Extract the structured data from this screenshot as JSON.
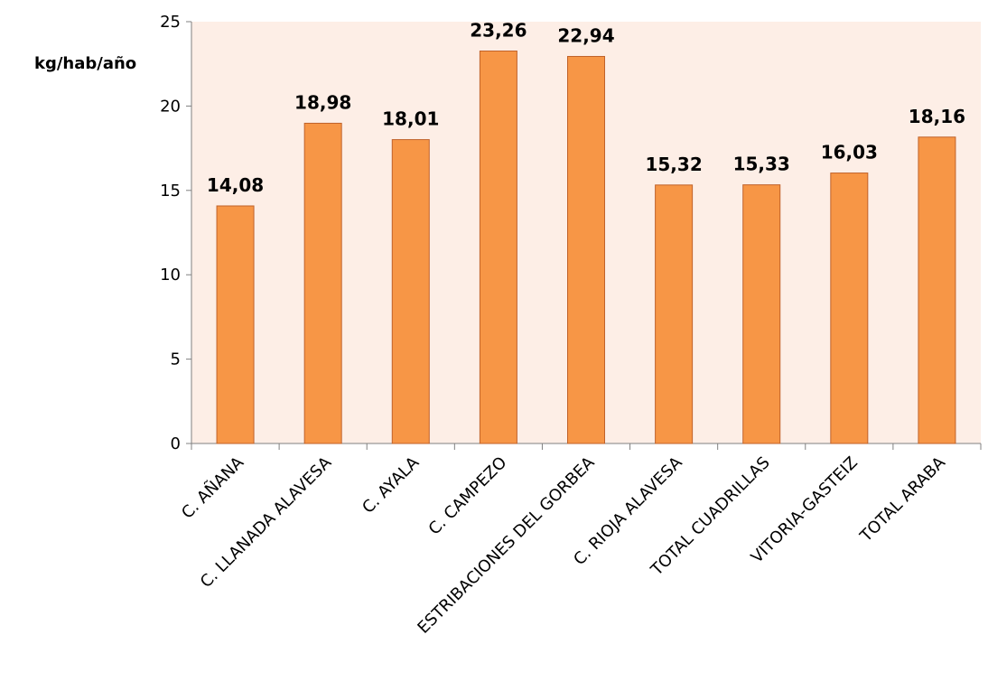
{
  "chart_data": {
    "type": "bar",
    "title": "",
    "xlabel": "",
    "ylabel": "kg/hab/año",
    "ylim": [
      0,
      25
    ],
    "yticks": [
      0,
      5,
      10,
      15,
      20,
      25
    ],
    "categories": [
      "C. AÑANA",
      "C. LLANADA ALAVESA",
      "C. AYALA",
      "C. CAMPEZO",
      "ESTRIBACIONES DEL GORBEA",
      "C. RIOJA ALAVESA",
      "TOTAL CUADRILLAS",
      "VITORIA-GASTEIZ",
      "TOTAL ARABA"
    ],
    "values": [
      14.08,
      18.98,
      18.01,
      23.26,
      22.94,
      15.32,
      15.33,
      16.03,
      18.16
    ],
    "value_labels": [
      "14,08",
      "18,98",
      "18,01",
      "23,26",
      "22,94",
      "15,32",
      "15,33",
      "16,03",
      "18,16"
    ],
    "grid": false,
    "colors": {
      "bar_fill": "#F79646",
      "bar_stroke": "#C0622A",
      "plot_background": "#FDEEE6",
      "axis": "#808080"
    }
  }
}
